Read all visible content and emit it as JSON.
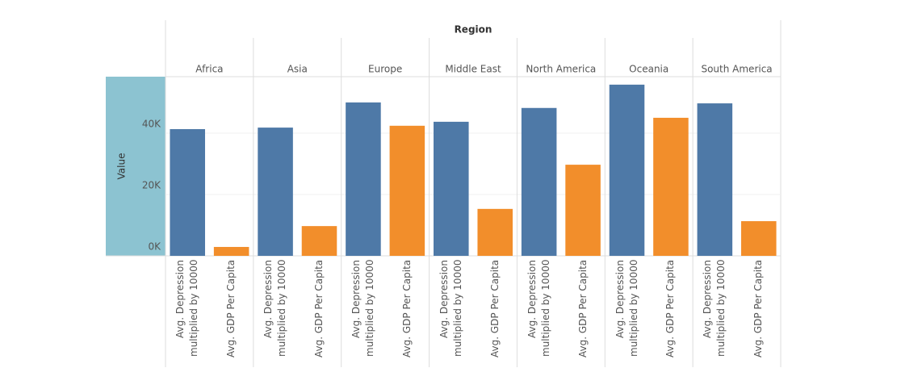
{
  "chart_data": {
    "type": "bar",
    "x_header": "Region",
    "y_label": "Value",
    "categories": [
      "Africa",
      "Asia",
      "Europe",
      "Middle East",
      "North America",
      "Oceania",
      "South America"
    ],
    "series": [
      {
        "name": "Avg. Depression multiplied by 10000",
        "color": "#4e79a7",
        "values": [
          41300,
          41800,
          50000,
          43700,
          48200,
          55800,
          49700
        ]
      },
      {
        "name": "Avg. GDP Per Capita",
        "color": "#f28e2b",
        "values": [
          2900,
          9700,
          42400,
          15300,
          29700,
          45000,
          11300
        ]
      }
    ],
    "ylim": [
      0,
      58400
    ],
    "yticks": [
      {
        "value": 0,
        "label": "0K"
      },
      {
        "value": 20000,
        "label": "20K"
      },
      {
        "value": 40000,
        "label": "40K"
      }
    ],
    "grid": true,
    "y_label_background": "#8cc3d1"
  }
}
